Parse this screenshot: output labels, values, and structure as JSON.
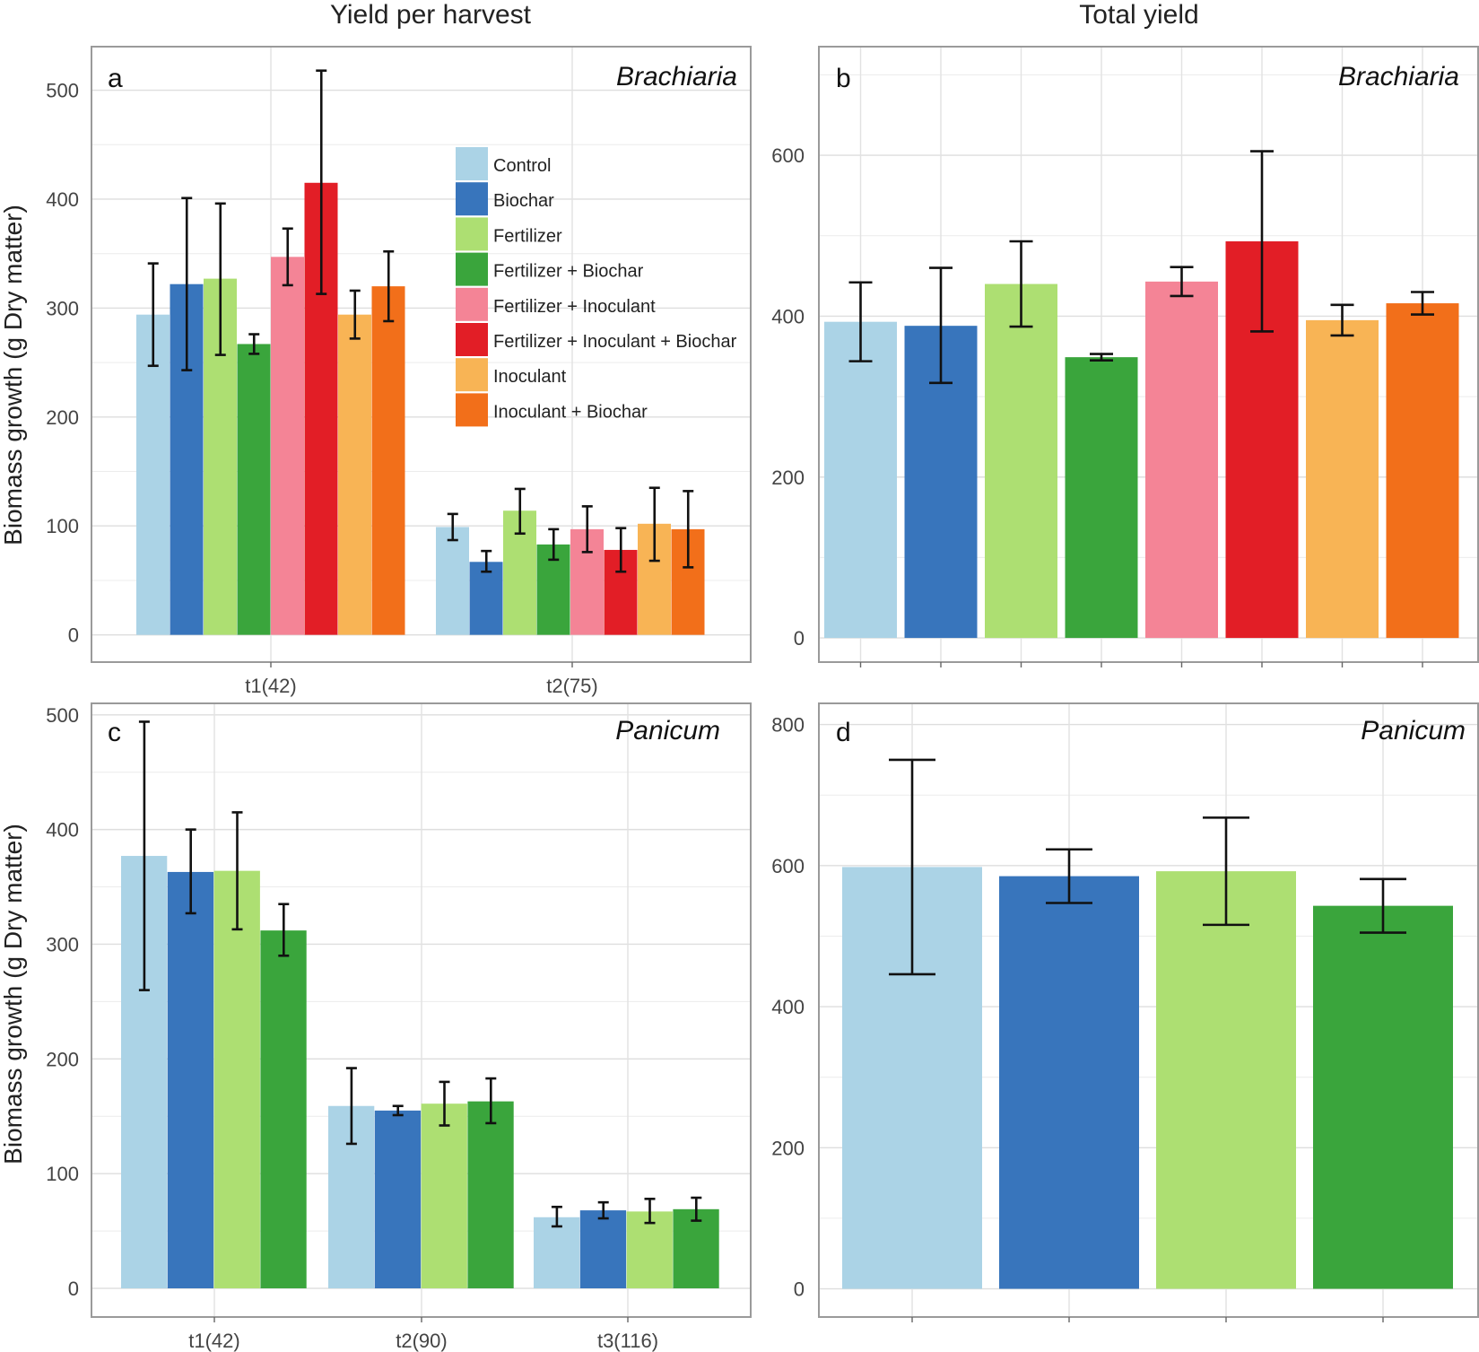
{
  "column_titles": {
    "left": "Yield per harvest",
    "right": "Total yield"
  },
  "y_axis_label": "Biomass growth (g Dry matter)",
  "legend": {
    "items": [
      {
        "name": "Control",
        "color": "#abd3e6"
      },
      {
        "name": "Biochar",
        "color": "#3875bc"
      },
      {
        "name": "Fertilizer",
        "color": "#addf72"
      },
      {
        "name": "Fertilizer + Biochar",
        "color": "#3aa53c"
      },
      {
        "name": "Fertilizer + Inoculant",
        "color": "#f48496"
      },
      {
        "name": "Fertilizer + Inoculant + Biochar",
        "color": "#e21e26"
      },
      {
        "name": "Inoculant",
        "color": "#f8b455"
      },
      {
        "name": "Inoculant + Biochar",
        "color": "#f26f1a"
      }
    ]
  },
  "chart_data": [
    {
      "panel": "a",
      "title": "Brachiaria",
      "type": "bar",
      "ylabel": "Biomass growth (g Dry matter)",
      "ylim": [
        -25,
        540
      ],
      "yticks": [
        0,
        100,
        200,
        300,
        400,
        500
      ],
      "categories": [
        "t1(42)",
        "t2(75)"
      ],
      "series": [
        {
          "name": "Control",
          "values": [
            294,
            99
          ],
          "err_low": [
            247,
            87
          ],
          "err_high": [
            341,
            111
          ]
        },
        {
          "name": "Biochar",
          "values": [
            322,
            67
          ],
          "err_low": [
            243,
            58
          ],
          "err_high": [
            401,
            77
          ]
        },
        {
          "name": "Fertilizer",
          "values": [
            327,
            114
          ],
          "err_low": [
            257,
            93
          ],
          "err_high": [
            396,
            134
          ]
        },
        {
          "name": "Fertilizer + Biochar",
          "values": [
            267,
            83
          ],
          "err_low": [
            258,
            69
          ],
          "err_high": [
            276,
            97
          ]
        },
        {
          "name": "Fertilizer + Inoculant",
          "values": [
            347,
            97
          ],
          "err_low": [
            321,
            76
          ],
          "err_high": [
            373,
            118
          ]
        },
        {
          "name": "Fertilizer + Inoculant + Biochar",
          "values": [
            415,
            78
          ],
          "err_low": [
            313,
            58
          ],
          "err_high": [
            518,
            98
          ]
        },
        {
          "name": "Inoculant",
          "values": [
            294,
            102
          ],
          "err_low": [
            272,
            68
          ],
          "err_high": [
            316,
            135
          ]
        },
        {
          "name": "Inoculant + Biochar",
          "values": [
            320,
            97
          ],
          "err_low": [
            288,
            62
          ],
          "err_high": [
            352,
            132
          ]
        }
      ]
    },
    {
      "panel": "b",
      "title": "Brachiaria",
      "type": "bar",
      "ylim": [
        -30,
        735
      ],
      "yticks": [
        0,
        200,
        400,
        600
      ],
      "categories": [
        "Control",
        "Biochar",
        "Fertilizer",
        "Fertilizer + Biochar",
        "Fertilizer + Inoculant",
        "Fertilizer + Inoculant + Biochar",
        "Inoculant",
        "Inoculant + Biochar"
      ],
      "values": [
        393,
        388,
        440,
        349,
        443,
        493,
        395,
        416
      ],
      "err_low": [
        344,
        317,
        387,
        345,
        425,
        381,
        376,
        402
      ],
      "err_high": [
        442,
        460,
        493,
        353,
        461,
        605,
        414,
        430
      ]
    },
    {
      "panel": "c",
      "title": "Panicum",
      "type": "bar",
      "ylabel": "Biomass growth (g Dry matter)",
      "ylim": [
        -25,
        510
      ],
      "yticks": [
        0,
        100,
        200,
        300,
        400,
        500
      ],
      "categories": [
        "t1(42)",
        "t2(90)",
        "t3(116)"
      ],
      "series": [
        {
          "name": "Control",
          "values": [
            377,
            159,
            62
          ],
          "err_low": [
            260,
            126,
            54
          ],
          "err_high": [
            494,
            192,
            71
          ]
        },
        {
          "name": "Biochar",
          "values": [
            363,
            155,
            68
          ],
          "err_low": [
            327,
            151,
            61
          ],
          "err_high": [
            400,
            159,
            75
          ]
        },
        {
          "name": "Fertilizer",
          "values": [
            364,
            161,
            67
          ],
          "err_low": [
            313,
            142,
            57
          ],
          "err_high": [
            415,
            180,
            78
          ]
        },
        {
          "name": "Fertilizer + Biochar",
          "values": [
            312,
            163,
            69
          ],
          "err_low": [
            290,
            144,
            59
          ],
          "err_high": [
            335,
            183,
            79
          ]
        }
      ]
    },
    {
      "panel": "d",
      "title": "Panicum",
      "type": "bar",
      "ylim": [
        -40,
        830
      ],
      "yticks": [
        0,
        200,
        400,
        600,
        800
      ],
      "categories": [
        "Control",
        "Biochar",
        "Fertilizer",
        "Fertilizer + Biochar"
      ],
      "values": [
        598,
        585,
        592,
        543
      ],
      "err_low": [
        446,
        547,
        516,
        505
      ],
      "err_high": [
        750,
        623,
        668,
        581
      ]
    }
  ]
}
